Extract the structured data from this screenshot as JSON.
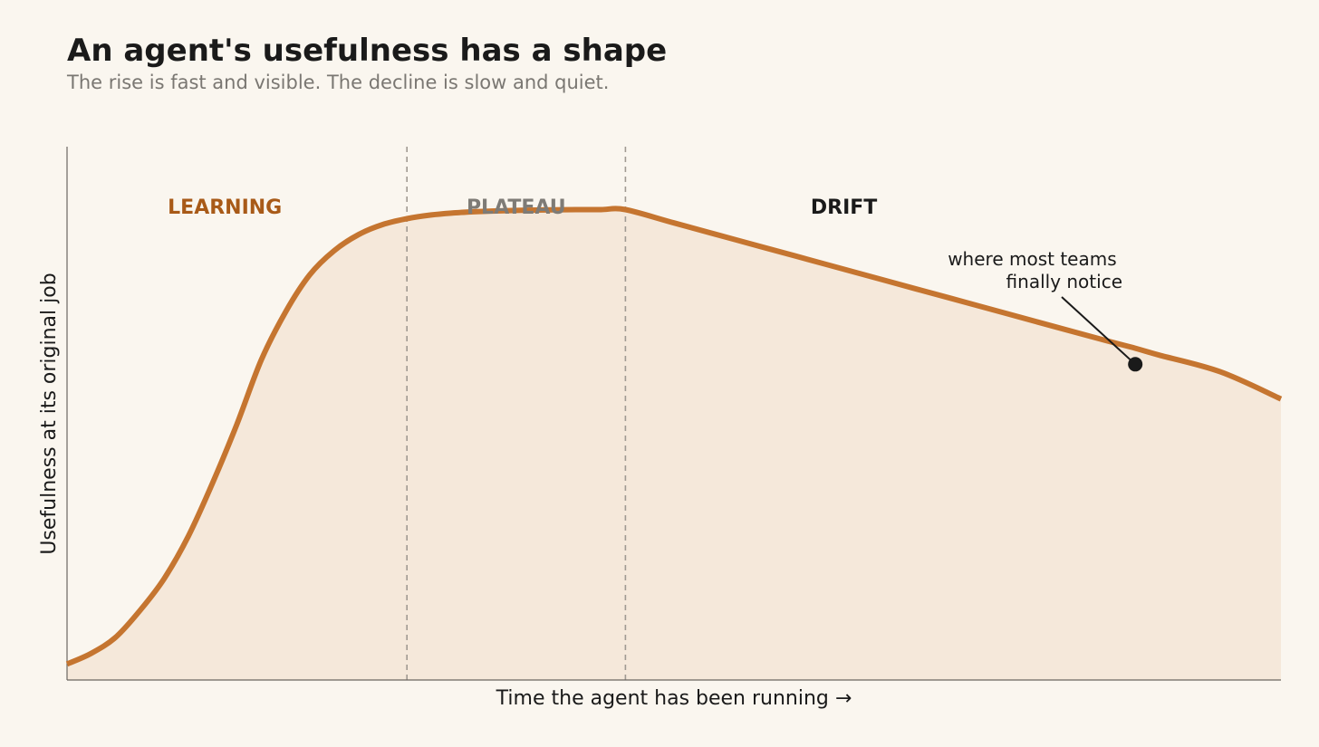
{
  "title": "An agent's usefulness has a shape",
  "subtitle": "The rise is fast and visible. The decline is slow and quiet.",
  "colors": {
    "background": "#faf6ef",
    "curve": "#c57530",
    "fill": "#f5e8da",
    "learning": "#a85a18",
    "plateau": "#7e7b76",
    "drift": "#1a1a1a",
    "divider": "#a09a92",
    "marker": "#1a1a1a"
  },
  "chart_data": {
    "type": "area",
    "title": "An agent's usefulness has a shape",
    "subtitle": "The rise is fast and visible. The decline is slow and quiet.",
    "xlabel": "Time the agent has been running  →",
    "ylabel": "Usefulness at its original job",
    "xlim": [
      0,
      100
    ],
    "ylim": [
      0,
      100
    ],
    "ticks": false,
    "grid": false,
    "phases": [
      {
        "label": "LEARNING",
        "start": 0,
        "end": 28
      },
      {
        "label": "PLATEAU",
        "start": 28,
        "end": 46
      },
      {
        "label": "DRIFT",
        "start": 46,
        "end": 100
      }
    ],
    "dividers": [
      28,
      46
    ],
    "series": [
      {
        "x": [
          0,
          2,
          4,
          6,
          8,
          10,
          12,
          14,
          16,
          18,
          20,
          22,
          24,
          26,
          28,
          30,
          32,
          34,
          36,
          38,
          40,
          42,
          44,
          46,
          50,
          55,
          60,
          65,
          70,
          75,
          80,
          85,
          88,
          90,
          95,
          100
        ],
        "y": [
          3,
          5,
          8,
          13,
          19,
          27,
          37,
          48,
          60,
          69,
          76,
          80.5,
          83.5,
          85.4,
          86.5,
          87.2,
          87.6,
          87.85,
          88,
          88.1,
          88.15,
          88.2,
          88.2,
          88.2,
          85.7,
          82.6,
          79.5,
          76.4,
          73.3,
          70.2,
          67.1,
          64.0,
          62.2,
          60.9,
          57.8,
          52.7
        ]
      }
    ],
    "annotation": {
      "text_lines": [
        "where most teams",
        "finally notice"
      ],
      "x": 88,
      "y": 59.2
    }
  }
}
